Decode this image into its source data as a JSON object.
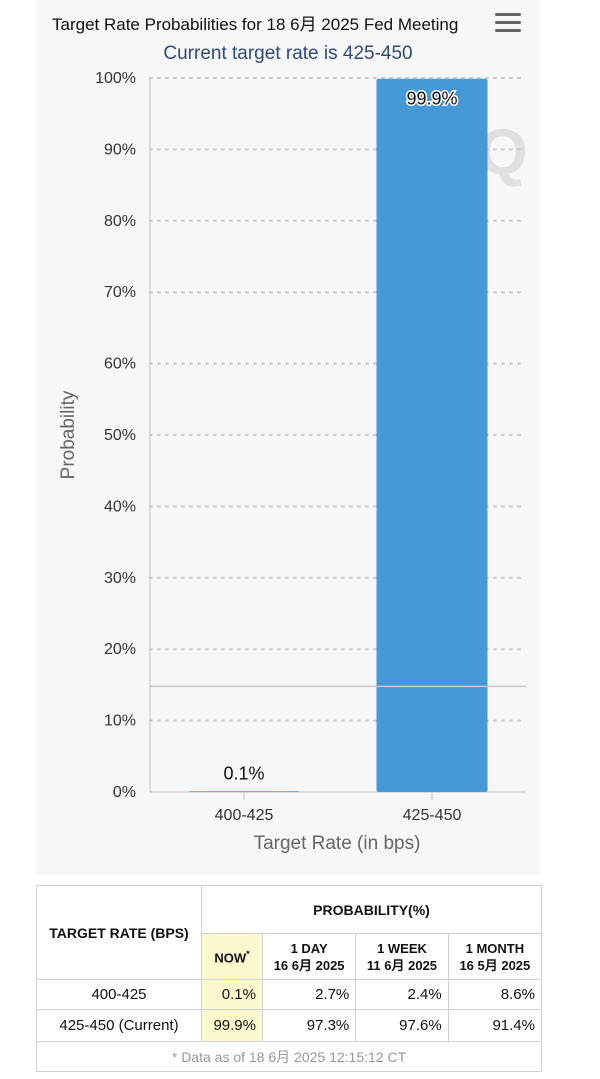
{
  "chart_header": {
    "title": "Target Rate Probabilities for 18 6月 2025 Fed Meeting",
    "subtitle": "Current target rate is 425-450",
    "menu_icon": "hamburger-menu-icon"
  },
  "chart_data": {
    "type": "bar",
    "title": "Target Rate Probabilities for 18 6月 2025 Fed Meeting",
    "subtitle": "Current target rate is 425-450",
    "categories": [
      "400-425",
      "425-450"
    ],
    "values": [
      0.1,
      99.9
    ],
    "value_labels": [
      "0.1%",
      "99.9%"
    ],
    "xlabel": "Target Rate (in bps)",
    "ylabel": "Probability",
    "ylim": [
      0,
      100
    ],
    "yticks": [
      "0%",
      "10%",
      "20%",
      "30%",
      "40%",
      "50%",
      "60%",
      "70%",
      "80%",
      "90%",
      "100%"
    ],
    "reference_line_value": 14.8,
    "bar_color": "#4499d6",
    "grid": "dotted horizontal"
  },
  "table": {
    "header_target": "TARGET RATE (BPS)",
    "header_prob": "PROBABILITY(%)",
    "col_now": "NOW",
    "col_now_mark": "*",
    "col_1day_label": "1 DAY",
    "col_1day_date": "16 6月 2025",
    "col_1week_label": "1 WEEK",
    "col_1week_date": "11 6月 2025",
    "col_1month_label": "1 MONTH",
    "col_1month_date": "16 5月 2025",
    "rows": [
      {
        "rate": "400-425",
        "now": "0.1%",
        "day": "2.7%",
        "week": "2.4%",
        "month": "8.6%"
      },
      {
        "rate": "425-450 (Current)",
        "now": "99.9%",
        "day": "97.3%",
        "week": "97.6%",
        "month": "91.4%"
      }
    ],
    "footnote": "* Data as of 18 6月 2025 12:15:12 CT"
  }
}
